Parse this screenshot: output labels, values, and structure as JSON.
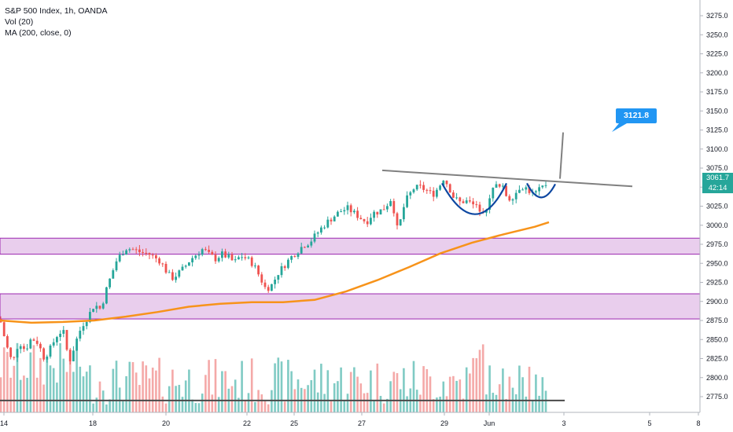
{
  "header": {
    "symbol_line": "S&P 500 Index, 1h, OANDA",
    "vol_line": "Vol (20)",
    "ma_line": "MA (200, close, 0)"
  },
  "price_badge": {
    "value": "3061.7",
    "countdown": "42:14",
    "color": "#26a69a"
  },
  "callout": {
    "value": "3121.8",
    "color": "#2196f3"
  },
  "colors": {
    "up": "#26a69a",
    "down": "#ef5350",
    "ma": "#f7931a",
    "zone_fill": "#e1bee7",
    "zone_border": "#9c27b0",
    "neckline": "#808080",
    "cup": "#0d47a1",
    "vol_up": "#80cbc4",
    "vol_down": "#f4a9a8"
  },
  "chart_data": {
    "type": "candlestick",
    "title": "S&P 500 Index, 1h, OANDA",
    "ylim": [
      2763,
      3295
    ],
    "y_ticks": [
      3275,
      3250,
      3225,
      3200,
      3175,
      3150,
      3125,
      3100,
      3075,
      3050,
      3025,
      3000,
      2975,
      2950,
      2925,
      2900,
      2875,
      2850,
      2825,
      2800,
      2775
    ],
    "x_ticks": [
      "14",
      "18",
      "20",
      "22",
      "25",
      "27",
      "29",
      "Jun",
      "3",
      "5",
      "8"
    ],
    "price_anchors": [
      [
        0,
        2877
      ],
      [
        8,
        2843
      ],
      [
        16,
        2818
      ],
      [
        24,
        2848
      ],
      [
        32,
        2836
      ],
      [
        40,
        2852
      ],
      [
        48,
        2846
      ],
      [
        56,
        2826
      ],
      [
        64,
        2838
      ],
      [
        72,
        2855
      ],
      [
        80,
        2863
      ],
      [
        88,
        2820
      ],
      [
        96,
        2846
      ],
      [
        104,
        2868
      ],
      [
        112,
        2880
      ],
      [
        120,
        2896
      ],
      [
        128,
        2890
      ],
      [
        136,
        2918
      ],
      [
        142,
        2936
      ],
      [
        148,
        2953
      ],
      [
        154,
        2962
      ],
      [
        160,
        2970
      ],
      [
        170,
        2968
      ],
      [
        180,
        2964
      ],
      [
        188,
        2963
      ],
      [
        196,
        2958
      ],
      [
        204,
        2953
      ],
      [
        210,
        2942
      ],
      [
        218,
        2930
      ],
      [
        226,
        2936
      ],
      [
        234,
        2944
      ],
      [
        242,
        2955
      ],
      [
        250,
        2962
      ],
      [
        258,
        2969
      ],
      [
        266,
        2961
      ],
      [
        274,
        2956
      ],
      [
        282,
        2962
      ],
      [
        290,
        2958
      ],
      [
        298,
        2951
      ],
      [
        306,
        2960
      ],
      [
        314,
        2956
      ],
      [
        322,
        2949
      ],
      [
        330,
        2933
      ],
      [
        338,
        2916
      ],
      [
        346,
        2922
      ],
      [
        354,
        2938
      ],
      [
        362,
        2948
      ],
      [
        370,
        2958
      ],
      [
        378,
        2966
      ],
      [
        386,
        2974
      ],
      [
        394,
        2978
      ],
      [
        402,
        2988
      ],
      [
        410,
        2998
      ],
      [
        418,
        3006
      ],
      [
        426,
        3013
      ],
      [
        434,
        3019
      ],
      [
        442,
        3022
      ],
      [
        450,
        3016
      ],
      [
        458,
        3010
      ],
      [
        466,
        3004
      ],
      [
        474,
        3016
      ],
      [
        482,
        3018
      ],
      [
        490,
        3024
      ],
      [
        498,
        3036
      ],
      [
        506,
        2990
      ],
      [
        512,
        3020
      ],
      [
        518,
        3036
      ],
      [
        526,
        3048
      ],
      [
        534,
        3050
      ],
      [
        542,
        3046
      ],
      [
        550,
        3040
      ],
      [
        558,
        3050
      ],
      [
        564,
        3062
      ],
      [
        570,
        3052
      ],
      [
        576,
        3038
      ],
      [
        584,
        3030
      ],
      [
        592,
        3032
      ],
      [
        600,
        3028
      ],
      [
        608,
        3022
      ],
      [
        616,
        3020
      ],
      [
        622,
        3030
      ],
      [
        628,
        3052
      ],
      [
        634,
        3050
      ],
      [
        640,
        3048
      ],
      [
        646,
        3034
      ],
      [
        654,
        3040
      ],
      [
        662,
        3052
      ],
      [
        670,
        3048
      ],
      [
        678,
        3040
      ],
      [
        686,
        3046
      ],
      [
        692,
        3052
      ],
      [
        698,
        3058
      ]
    ],
    "ma200": [
      [
        0,
        2875
      ],
      [
        40,
        2872
      ],
      [
        80,
        2873
      ],
      [
        120,
        2875
      ],
      [
        160,
        2880
      ],
      [
        200,
        2886
      ],
      [
        240,
        2893
      ],
      [
        280,
        2897
      ],
      [
        320,
        2899
      ],
      [
        360,
        2899
      ],
      [
        400,
        2902
      ],
      [
        440,
        2913
      ],
      [
        480,
        2928
      ],
      [
        520,
        2945
      ],
      [
        560,
        2963
      ],
      [
        600,
        2977
      ],
      [
        640,
        2988
      ],
      [
        680,
        2998
      ],
      [
        698,
        3004
      ]
    ],
    "zones": [
      [
        2962,
        2983
      ],
      [
        2877,
        2910
      ]
    ],
    "neckline": [
      [
        486,
        3072
      ],
      [
        804,
        3051
      ]
    ],
    "breakout_line": [
      [
        712,
        3061
      ],
      [
        716,
        3121.8
      ]
    ],
    "cup": [
      [
        562,
        3055
      ],
      [
        590,
        3002
      ],
      [
        618,
        3000
      ],
      [
        644,
        3055
      ]
    ],
    "handle": [
      [
        670,
        3055
      ],
      [
        688,
        3035
      ],
      [
        706,
        3054
      ]
    ],
    "target": 3121.8,
    "baseline_level": 2770
  }
}
